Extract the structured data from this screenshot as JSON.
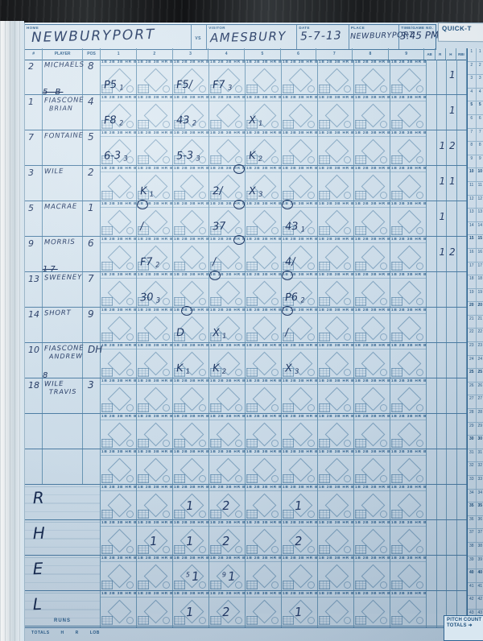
{
  "header": {
    "home_label": "HOME",
    "home_team": "NEWBURYPORT",
    "vs_label": "VS",
    "visitor_label": "VISITOR",
    "visitor_team": "AMESBURY",
    "date_label": "DATE",
    "date": "5-7-13",
    "place_label": "PLACE",
    "place": "NEWBURYPORT",
    "time_label": "TIME/GAME NO.",
    "time": "3:45 PM",
    "quick_label": "QUICK-T"
  },
  "columns": {
    "number": "#",
    "player": "PLAYER",
    "pos": "POS",
    "innings": [
      "1",
      "2",
      "3",
      "4",
      "5",
      "6",
      "7",
      "8",
      "9"
    ],
    "stats": [
      "AB",
      "R",
      "H",
      "RBI"
    ]
  },
  "strip_text": "1B 2B 3B HR BB",
  "rows": [
    {
      "type": "player",
      "number": "2",
      "name": "MICHAELS",
      "name2": "",
      "pos": "8",
      "cells": [
        {
          "inning": 1,
          "text": "P5",
          "sub": "1"
        },
        {
          "inning": 3,
          "text": "F5/"
        },
        {
          "inning": 4,
          "text": "F7",
          "sub": "3"
        }
      ],
      "stats": [
        "",
        "",
        "1",
        ""
      ]
    },
    {
      "type": "player",
      "number": "1",
      "name": "FIASCONE",
      "name2": "BRIAN",
      "pos": "4",
      "margin": "5 B",
      "margin_strike": true,
      "cells": [
        {
          "inning": 1,
          "text": "F8",
          "sub": "2"
        },
        {
          "inning": 3,
          "text": "43",
          "sub": "2"
        },
        {
          "inning": 5,
          "text": "X",
          "sub": "1"
        }
      ],
      "stats": [
        "",
        "",
        "1",
        ""
      ]
    },
    {
      "type": "player",
      "number": "7",
      "name": "FONTAINE",
      "name2": "",
      "pos": "5",
      "cells": [
        {
          "inning": 1,
          "text": "6-3",
          "sub": "3"
        },
        {
          "inning": 3,
          "text": "5-3",
          "sub": "3"
        },
        {
          "inning": 5,
          "text": "K",
          "sub": "2"
        }
      ],
      "stats": [
        "",
        "1",
        "2",
        ""
      ]
    },
    {
      "type": "player",
      "number": "3",
      "name": "WILE",
      "name2": "",
      "pos": "2",
      "cells": [
        {
          "inning": 2,
          "text": "K",
          "sub": "1"
        },
        {
          "inning": 4,
          "text": "2/",
          "ring": "BB"
        },
        {
          "inning": 5,
          "text": "X",
          "sub": "3"
        }
      ],
      "stats": [
        "",
        "1",
        "1",
        ""
      ]
    },
    {
      "type": "player",
      "number": "5",
      "name": "MACRAE",
      "name2": "",
      "pos": "1",
      "cells": [
        {
          "inning": 2,
          "text": "/",
          "ring": "1B"
        },
        {
          "inning": 4,
          "text": "37",
          "ring": "BB"
        },
        {
          "inning": 6,
          "text": "43",
          "sub": "1",
          "ring": "1B"
        }
      ],
      "stats": [
        "",
        "1",
        "",
        ""
      ]
    },
    {
      "type": "player",
      "number": "9",
      "name": "MORRIS",
      "name2": "",
      "pos": "6",
      "cells": [
        {
          "inning": 2,
          "text": "F7",
          "sub": "2"
        },
        {
          "inning": 4,
          "text": "/",
          "ring": "BB"
        },
        {
          "inning": 6,
          "text": "4/"
        }
      ],
      "stats": [
        "",
        "1",
        "2",
        ""
      ]
    },
    {
      "type": "player",
      "number": "13",
      "name": "SWEENEY",
      "name2": "",
      "pos": "7",
      "margin": "17",
      "margin_strike": true,
      "cells": [
        {
          "inning": 2,
          "text": "30",
          "sub": "3"
        },
        {
          "inning": 4,
          "ring": "1B"
        },
        {
          "inning": 6,
          "text": "P6",
          "sub": "2",
          "ring": "1B"
        }
      ],
      "stats": [
        "",
        "",
        "",
        ""
      ]
    },
    {
      "type": "player",
      "number": "14",
      "name": "SHORT",
      "name2": "",
      "pos": "9",
      "cells": [
        {
          "inning": 3,
          "text": "D",
          "ring": "2B"
        },
        {
          "inning": 4,
          "text": "X",
          "sub": "1"
        },
        {
          "inning": 6,
          "text": "/",
          "ring": "1B"
        }
      ],
      "stats": [
        "",
        "",
        "",
        ""
      ]
    },
    {
      "type": "player",
      "number": "10",
      "name": "FIASCONE",
      "name2": "ANDREW",
      "pos": "DH",
      "cells": [
        {
          "inning": 3,
          "text": "K",
          "sub": "1"
        },
        {
          "inning": 4,
          "text": "K",
          "sub": "2"
        },
        {
          "inning": 6,
          "text": "X",
          "sub": "3"
        }
      ],
      "stats": [
        "",
        "",
        "",
        ""
      ]
    },
    {
      "type": "player",
      "number": "18",
      "name": "WILE",
      "name2": "TRAVIS",
      "pos": "3",
      "margin": "8",
      "margin_strike": false,
      "cells": [],
      "stats": [
        "",
        "",
        "",
        ""
      ]
    },
    {
      "type": "blank",
      "cells": [],
      "stats": [
        "",
        "",
        "",
        ""
      ]
    },
    {
      "type": "blank",
      "cells": [],
      "stats": [
        "",
        "",
        "",
        ""
      ]
    },
    {
      "type": "summary",
      "label": "R",
      "cells": [
        {
          "inning": 3,
          "text": "1"
        },
        {
          "inning": 4,
          "text": "2"
        },
        {
          "inning": 6,
          "text": "1"
        }
      ],
      "stats": [
        "",
        "",
        "",
        ""
      ]
    },
    {
      "type": "summary",
      "label": "H",
      "cells": [
        {
          "inning": 2,
          "text": "1"
        },
        {
          "inning": 3,
          "text": "1"
        },
        {
          "inning": 4,
          "text": "2"
        },
        {
          "inning": 6,
          "text": "2"
        }
      ],
      "stats": [
        "",
        "",
        "",
        ""
      ]
    },
    {
      "type": "summary",
      "label": "E",
      "cells": [
        {
          "inning": 3,
          "text": "1",
          "sup": "5"
        },
        {
          "inning": 4,
          "text": "1",
          "sup": "9"
        }
      ],
      "stats": [
        "",
        "",
        "",
        ""
      ]
    },
    {
      "type": "summary",
      "label": "L",
      "cells": [
        {
          "inning": 3,
          "text": "1"
        },
        {
          "inning": 4,
          "text": "2"
        },
        {
          "inning": 6,
          "text": "1"
        }
      ],
      "stats": [
        "",
        "",
        "",
        ""
      ]
    }
  ],
  "quick": {
    "numbers": [
      1,
      2,
      3,
      4,
      5,
      6,
      7,
      8,
      9,
      10,
      11,
      12,
      13,
      14,
      15,
      16,
      17,
      18,
      19,
      20,
      21,
      22,
      23,
      24,
      25,
      26,
      27,
      28,
      29,
      30,
      31,
      32,
      33,
      34,
      35,
      36,
      37,
      38,
      39,
      40,
      41,
      42,
      43,
      44,
      45
    ]
  },
  "footer": {
    "runs_label": "RUNS",
    "totals_label": "TOTALS",
    "totals_cols": [
      "H",
      "R",
      "LOB"
    ],
    "pitch_count_label": "PITCH COUNT",
    "pitch_totals_label": "TOTALS ➜"
  }
}
